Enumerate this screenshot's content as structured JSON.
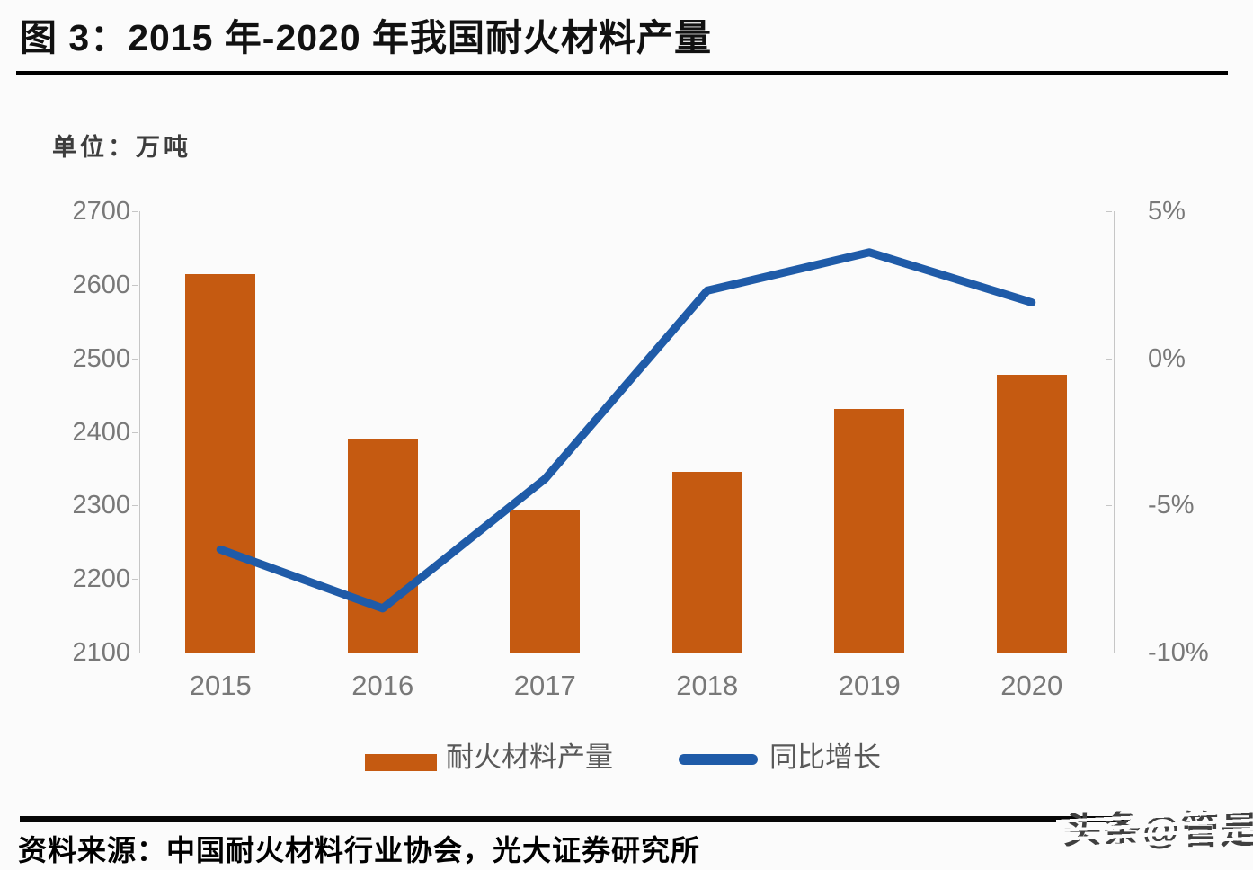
{
  "figure": {
    "title": "图 3：2015 年-2020 年我国耐火材料产量",
    "unit_label": "单位：万吨",
    "source": "资料来源：中国耐火材料行业协会，光大证券研究所",
    "watermark": "头条@管是"
  },
  "colors": {
    "bar": "#C55A11",
    "line": "#1F5BA8",
    "axis": "#C6C6C6",
    "tick_label": "#787878",
    "legend_text": "#595959"
  },
  "chart_data": {
    "type": "bar",
    "subtype": "combo-bar-line-dual-axis",
    "title": "图 3：2015 年-2020 年我国耐火材料产量",
    "xlabel": "",
    "ylabel": "单位：万吨",
    "categories": [
      "2015",
      "2016",
      "2017",
      "2018",
      "2019",
      "2020"
    ],
    "series": [
      {
        "name": "耐火材料产量",
        "type": "bar",
        "axis": "left",
        "unit": "万吨",
        "values": [
          2615,
          2391,
          2293,
          2346,
          2431,
          2478
        ]
      },
      {
        "name": "同比增长",
        "type": "line",
        "axis": "right",
        "unit": "%",
        "values": [
          -6.5,
          -8.5,
          -4.1,
          2.3,
          3.6,
          1.9
        ]
      }
    ],
    "left_axis": {
      "min": 2100,
      "max": 2700,
      "step": 100,
      "ticks": [
        "2700",
        "2600",
        "2500",
        "2400",
        "2300",
        "2200",
        "2100"
      ]
    },
    "right_axis": {
      "min": -10,
      "max": 5,
      "step": 5,
      "ticks": [
        "5%",
        "0%",
        "-5%",
        "-10%"
      ]
    },
    "grid": false,
    "legend_position": "bottom"
  }
}
